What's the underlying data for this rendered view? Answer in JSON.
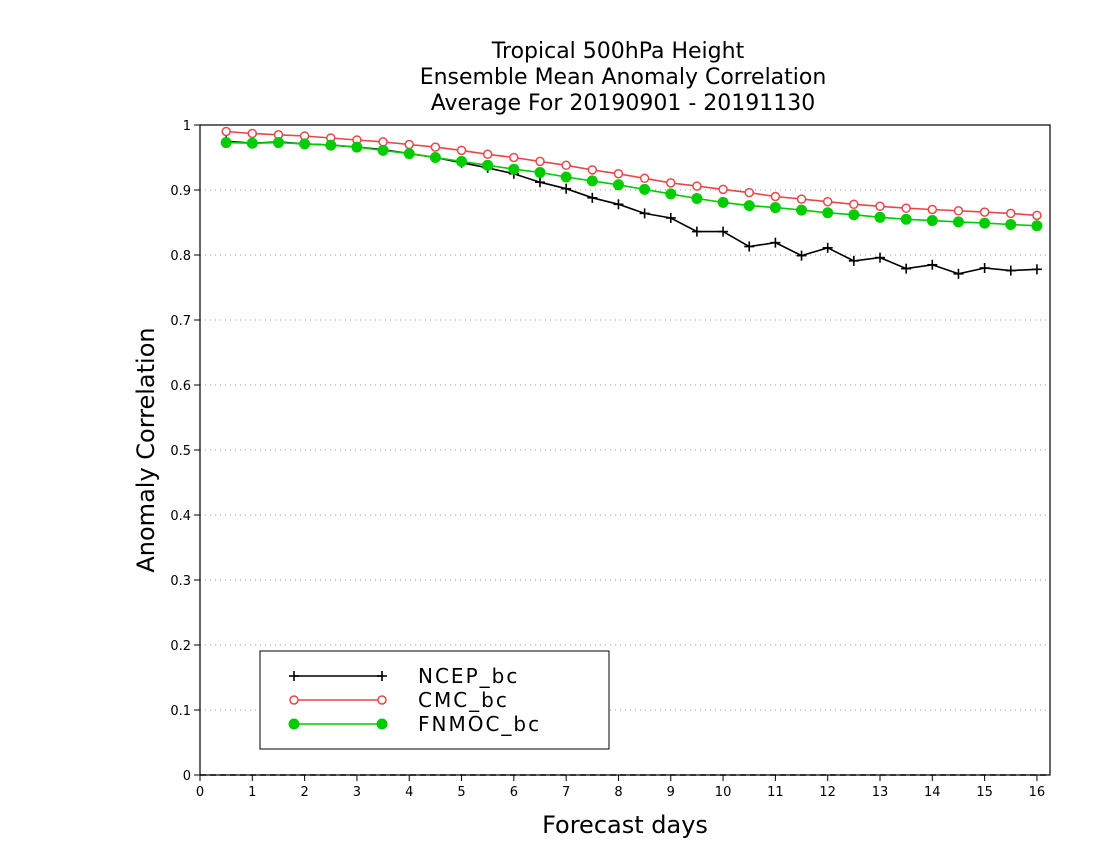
{
  "chart_data": {
    "type": "line",
    "title_lines": [
      "Tropical 500hPa Height",
      "Ensemble Mean Anomaly Correlation",
      "Average For 20190901 - 20191130"
    ],
    "xlabel": "Forecast days",
    "ylabel": "Anomaly Correlation",
    "xlim": [
      0,
      16.25
    ],
    "ylim": [
      0,
      1
    ],
    "x_ticks": [
      0,
      1,
      2,
      3,
      4,
      5,
      6,
      7,
      8,
      9,
      10,
      11,
      12,
      13,
      14,
      15,
      16
    ],
    "x_tick_labels": [
      "0",
      "1",
      "2",
      "3",
      "4",
      "5",
      "6",
      "7",
      "8",
      "9",
      "10",
      "11",
      "12",
      "13",
      "14",
      "15",
      "16"
    ],
    "y_ticks": [
      0,
      0.1,
      0.2,
      0.3,
      0.4,
      0.5,
      0.6,
      0.7,
      0.8,
      0.9,
      1
    ],
    "y_tick_labels": [
      "0",
      "0.1",
      "0.2",
      "0.3",
      "0.4",
      "0.5",
      "0.6",
      "0.7",
      "0.8",
      "0.9",
      "1"
    ],
    "grid": "horizontal dotted",
    "legend_position": "bottom-left",
    "x": [
      0.5,
      1,
      1.5,
      2,
      2.5,
      3,
      3.5,
      4,
      4.5,
      5,
      5.5,
      6,
      6.5,
      7,
      7.5,
      8,
      8.5,
      9,
      9.5,
      10,
      10.5,
      11,
      11.5,
      12,
      12.5,
      13,
      13.5,
      14,
      14.5,
      15,
      15.5,
      16
    ],
    "series": [
      {
        "name": "NCEP_bc",
        "color": "#000000",
        "marker": "plus",
        "values": [
          0.975,
          0.972,
          0.974,
          0.971,
          0.969,
          0.966,
          0.962,
          0.956,
          0.95,
          0.942,
          0.934,
          0.925,
          0.912,
          0.902,
          0.888,
          0.878,
          0.864,
          0.857,
          0.836,
          0.836,
          0.813,
          0.819,
          0.799,
          0.811,
          0.791,
          0.796,
          0.779,
          0.785,
          0.771,
          0.78,
          0.776,
          0.778
        ]
      },
      {
        "name": "CMC_bc",
        "color": "#e8474a",
        "marker": "open-circle",
        "values": [
          0.99,
          0.987,
          0.985,
          0.983,
          0.98,
          0.977,
          0.974,
          0.97,
          0.966,
          0.961,
          0.955,
          0.95,
          0.944,
          0.938,
          0.931,
          0.925,
          0.918,
          0.911,
          0.906,
          0.901,
          0.896,
          0.89,
          0.886,
          0.882,
          0.878,
          0.875,
          0.872,
          0.87,
          0.868,
          0.866,
          0.864,
          0.861
        ]
      },
      {
        "name": "FNMOC_bc",
        "color": "#00cc00",
        "marker": "filled-circle",
        "values": [
          0.973,
          0.972,
          0.973,
          0.971,
          0.969,
          0.966,
          0.961,
          0.956,
          0.95,
          0.944,
          0.938,
          0.932,
          0.927,
          0.92,
          0.914,
          0.908,
          0.901,
          0.894,
          0.887,
          0.881,
          0.876,
          0.873,
          0.869,
          0.865,
          0.862,
          0.858,
          0.855,
          0.853,
          0.851,
          0.849,
          0.847,
          0.845
        ]
      }
    ]
  }
}
